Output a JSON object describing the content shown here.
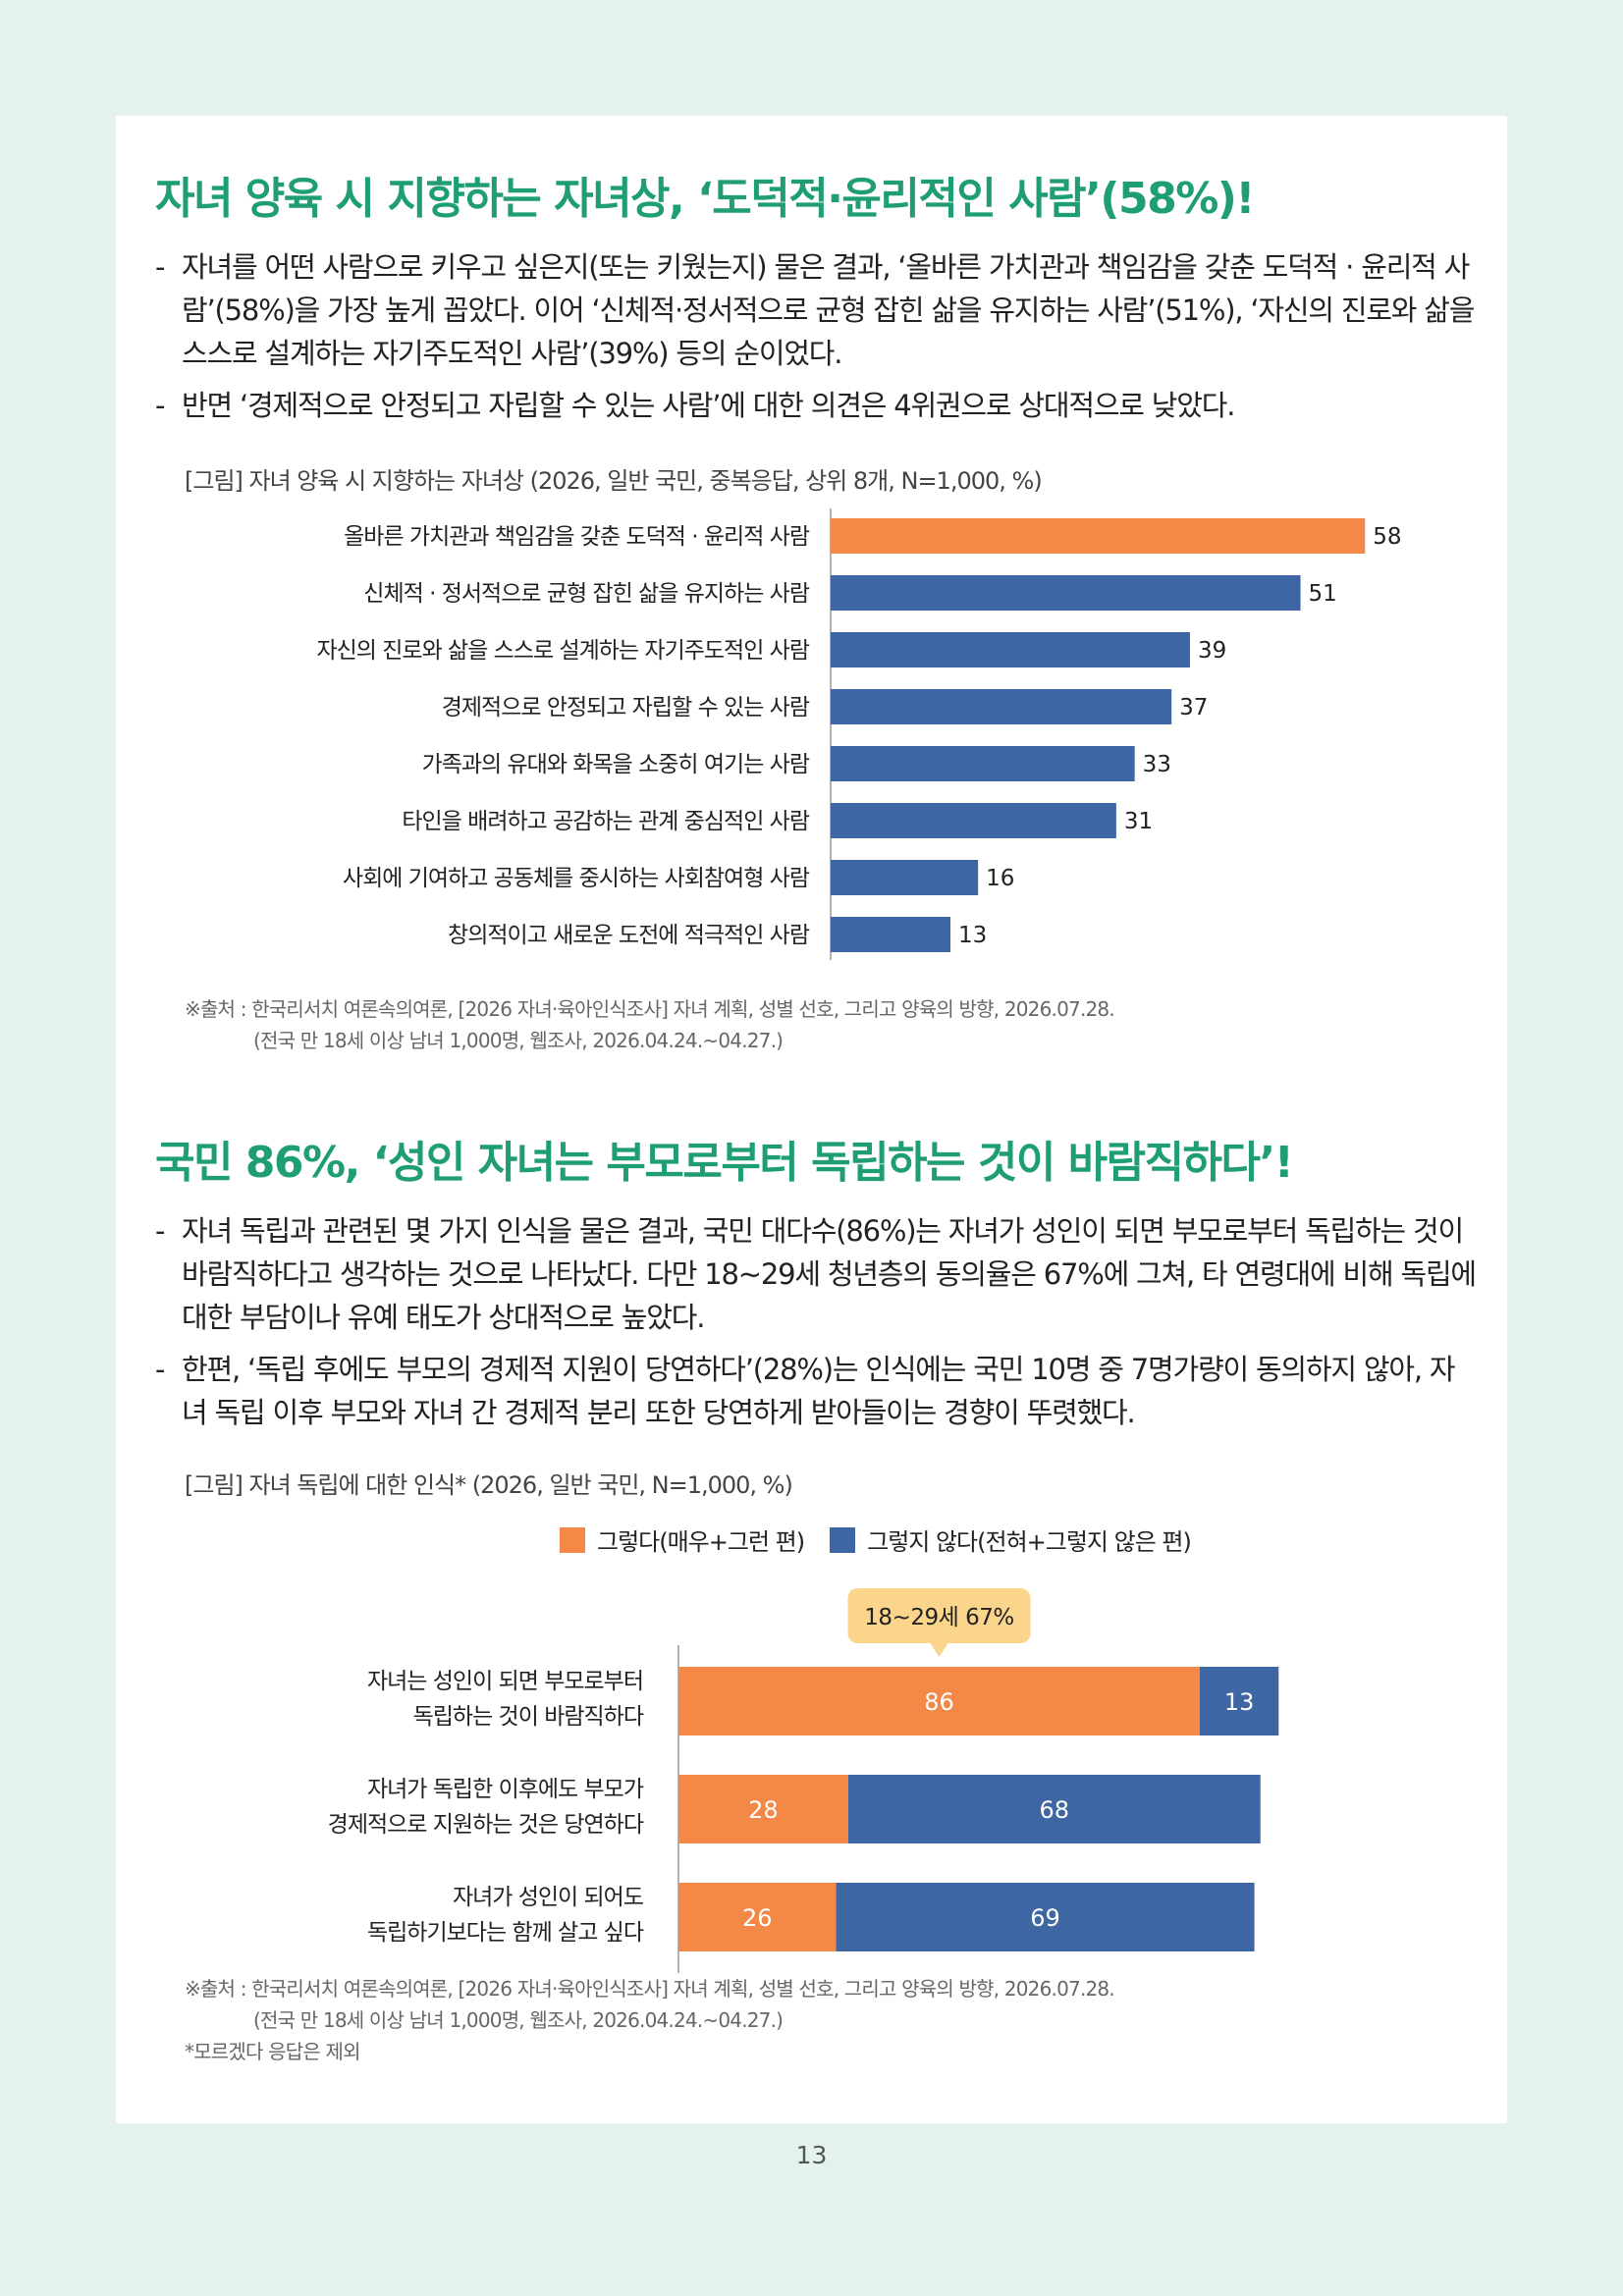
{
  "colors": {
    "accent": "#f38847",
    "blue": "#3e66a3",
    "title_green": "#1f9d74",
    "background": "#e3f2ee",
    "callout": "#fbd58b"
  },
  "section1": {
    "title": "자녀 양육 시 지향하는 자녀상, ‘도덕적·윤리적인 사람’(58%)!",
    "bullets": [
      "자녀를 어떤 사람으로 키우고 싶은지(또는 키웠는지) 물은 결과, ‘올바른 가치관과 책임감을 갖춘 도덕적 · 윤리적 사람’(58%)을 가장 높게 꼽았다. 이어 ‘신체적·정서적으로 균형 잡힌 삶을 유지하는 사람’(51%), ‘자신의 진로와 삶을 스스로 설계하는 자기주도적인 사람’(39%) 등의 순이었다.",
      "반면 ‘경제적으로 안정되고 자립할 수 있는 사람’에 대한 의견은 4위권으로 상대적으로 낮았다."
    ],
    "figure_caption": "[그림] 자녀 양육 시 지향하는 자녀상 (2026, 일반 국민, 중복응답, 상위 8개, N=1,000, %)",
    "source_line1": "※출처 : 한국리서치 여론속의여론, [2026 자녀·육아인식조사] 자녀 계획, 성별 선호, 그리고 양육의 방향, 2026.07.28.",
    "source_line2": "(전국 만 18세 이상 남녀 1,000명, 웹조사, 2026.04.24.~04.27.)"
  },
  "section2": {
    "title": "국민 86%, ‘성인 자녀는 부모로부터 독립하는 것이 바람직하다’!",
    "bullets": [
      "자녀 독립과 관련된 몇 가지 인식을 물은 결과, 국민 대다수(86%)는 자녀가 성인이 되면 부모로부터 독립하는 것이 바람직하다고 생각하는 것으로 나타났다. 다만 18~29세 청년층의 동의율은 67%에 그쳐, 타 연령대에 비해 독립에 대한 부담이나 유예 태도가 상대적으로 높았다.",
      "한편, ‘독립 후에도 부모의 경제적 지원이 당연하다’(28%)는 인식에는 국민 10명 중 7명가량이 동의하지 않아, 자녀 독립 이후 부모와 자녀 간 경제적 분리 또한 당연하게 받아들이는 경향이 뚜렷했다."
    ],
    "figure_caption": "[그림] 자녀 독립에 대한 인식* (2026, 일반 국민, N=1,000, %)",
    "callout": "18~29세 67%",
    "source_line1": "※출처 : 한국리서치 여론속의여론, [2026 자녀·육아인식조사] 자녀 계획, 성별 선호, 그리고 양육의 방향, 2026.07.28.",
    "source_line2": "(전국 만 18세 이상 남녀 1,000명, 웹조사, 2026.04.24.~04.27.)",
    "note": "*모르겠다 응답은 제외"
  },
  "chart_data": [
    {
      "type": "bar",
      "orientation": "horizontal",
      "categories": [
        "올바른 가치관과 책임감을 갖춘 도덕적 · 윤리적 사람",
        "신체적 · 정서적으로 균형 잡힌 삶을 유지하는 사람",
        "자신의 진로와 삶을 스스로 설계하는 자기주도적인 사람",
        "경제적으로 안정되고 자립할 수 있는 사람",
        "가족과의 유대와 화목을 소중히 여기는 사람",
        "타인을 배려하고 공감하는 관계 중심적인 사람",
        "사회에 기여하고 공동체를 중시하는 사회참여형 사람",
        "창의적이고 새로운 도전에 적극적인 사람"
      ],
      "values": [
        58,
        51,
        39,
        37,
        33,
        31,
        16,
        13
      ],
      "highlight_index": 0,
      "title": "[그림] 자녀 양육 시 지향하는 자녀상 (2026, 일반 국민, 중복응답, 상위 8개, N=1,000, %)",
      "xlim": [
        0,
        60
      ]
    },
    {
      "type": "bar",
      "orientation": "horizontal",
      "stacked": true,
      "categories": [
        [
          "자녀는 성인이 되면 부모로부터",
          "독립하는 것이 바람직하다"
        ],
        [
          "자녀가 독립한 이후에도 부모가",
          "경제적으로 지원하는 것은 당연하다"
        ],
        [
          "자녀가 성인이 되어도",
          "독립하기보다는 함께 살고 싶다"
        ]
      ],
      "series": [
        {
          "name": "그렇다(매우+그런 편)",
          "color": "#f38847",
          "values": [
            86,
            28,
            26
          ]
        },
        {
          "name": "그렇지 않다(전혀+그렇지 않은 편)",
          "color": "#3e66a3",
          "values": [
            13,
            68,
            69
          ]
        }
      ],
      "title": "[그림] 자녀 독립에 대한 인식* (2026, 일반 국민, N=1,000, %)",
      "legend": "top",
      "xlim": [
        0,
        100
      ]
    }
  ],
  "page_number": "13"
}
